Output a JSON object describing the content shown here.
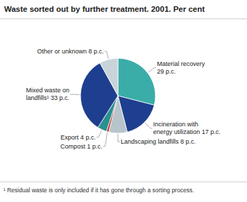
{
  "chart_data": {
    "type": "pie",
    "title": "Waste sorted out by further treatment. 2001. Per cent",
    "footnote": "¹  Residual waste is only included if it has gone through a sorting process.",
    "categories": [
      "Material recovery\n29 p.c.",
      "Incineration with\nenergy utilization 17 p.c.",
      "Landscaping landfills  8 p.c.",
      "Compost 1 p.c.",
      "Export  4 p.c.",
      "Mixed waste on\nlandfills¹ 33 p.c.",
      "Other or unknown  8 p.c."
    ],
    "values": [
      29,
      17,
      8,
      1,
      4,
      33,
      8
    ],
    "colors": [
      "#3aada8",
      "#1e3f8f",
      "#b8c4cc",
      "#c0392b",
      "#2a9090",
      "#1e3f8f",
      "#c8d4da"
    ]
  }
}
